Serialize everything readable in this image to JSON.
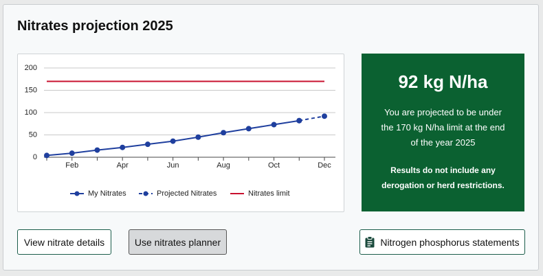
{
  "header": {
    "title": "Nitrates projection 2025"
  },
  "chart_data": {
    "type": "line",
    "categories": [
      null,
      "Feb",
      null,
      "Apr",
      null,
      "Jun",
      null,
      "Aug",
      null,
      "Oct",
      null,
      "Dec"
    ],
    "series": [
      {
        "name": "My Nitrates",
        "color": "#1f3f9e",
        "linestyle": "solid",
        "marker": "circle",
        "values": [
          4,
          9,
          16,
          22,
          29,
          36,
          45,
          55,
          64,
          73,
          82,
          null
        ]
      },
      {
        "name": "Projected Nitrates",
        "color": "#1f3f9e",
        "linestyle": "dashed",
        "marker": "circle",
        "values": [
          null,
          null,
          null,
          null,
          null,
          null,
          null,
          null,
          null,
          null,
          82,
          92
        ]
      },
      {
        "name": "Nitrates limit",
        "color": "#c8102e",
        "linestyle": "solid",
        "values": [
          170,
          170,
          170,
          170,
          170,
          170,
          170,
          170,
          170,
          170,
          170,
          170
        ]
      }
    ],
    "ylim": [
      0,
      200
    ],
    "yticks": [
      0,
      50,
      100,
      150,
      200
    ],
    "grid": true,
    "legend": "bottom"
  },
  "summary": {
    "headline": "92 kg N/ha",
    "text": "You are projected to be under the 170 kg N/ha limit at the end of the year 2025",
    "note": "Results do not include any derogation or herd restrictions."
  },
  "buttons": [
    "View nitrate details",
    "Use nitrates planner",
    "Nitrogen phosphorus statements"
  ]
}
